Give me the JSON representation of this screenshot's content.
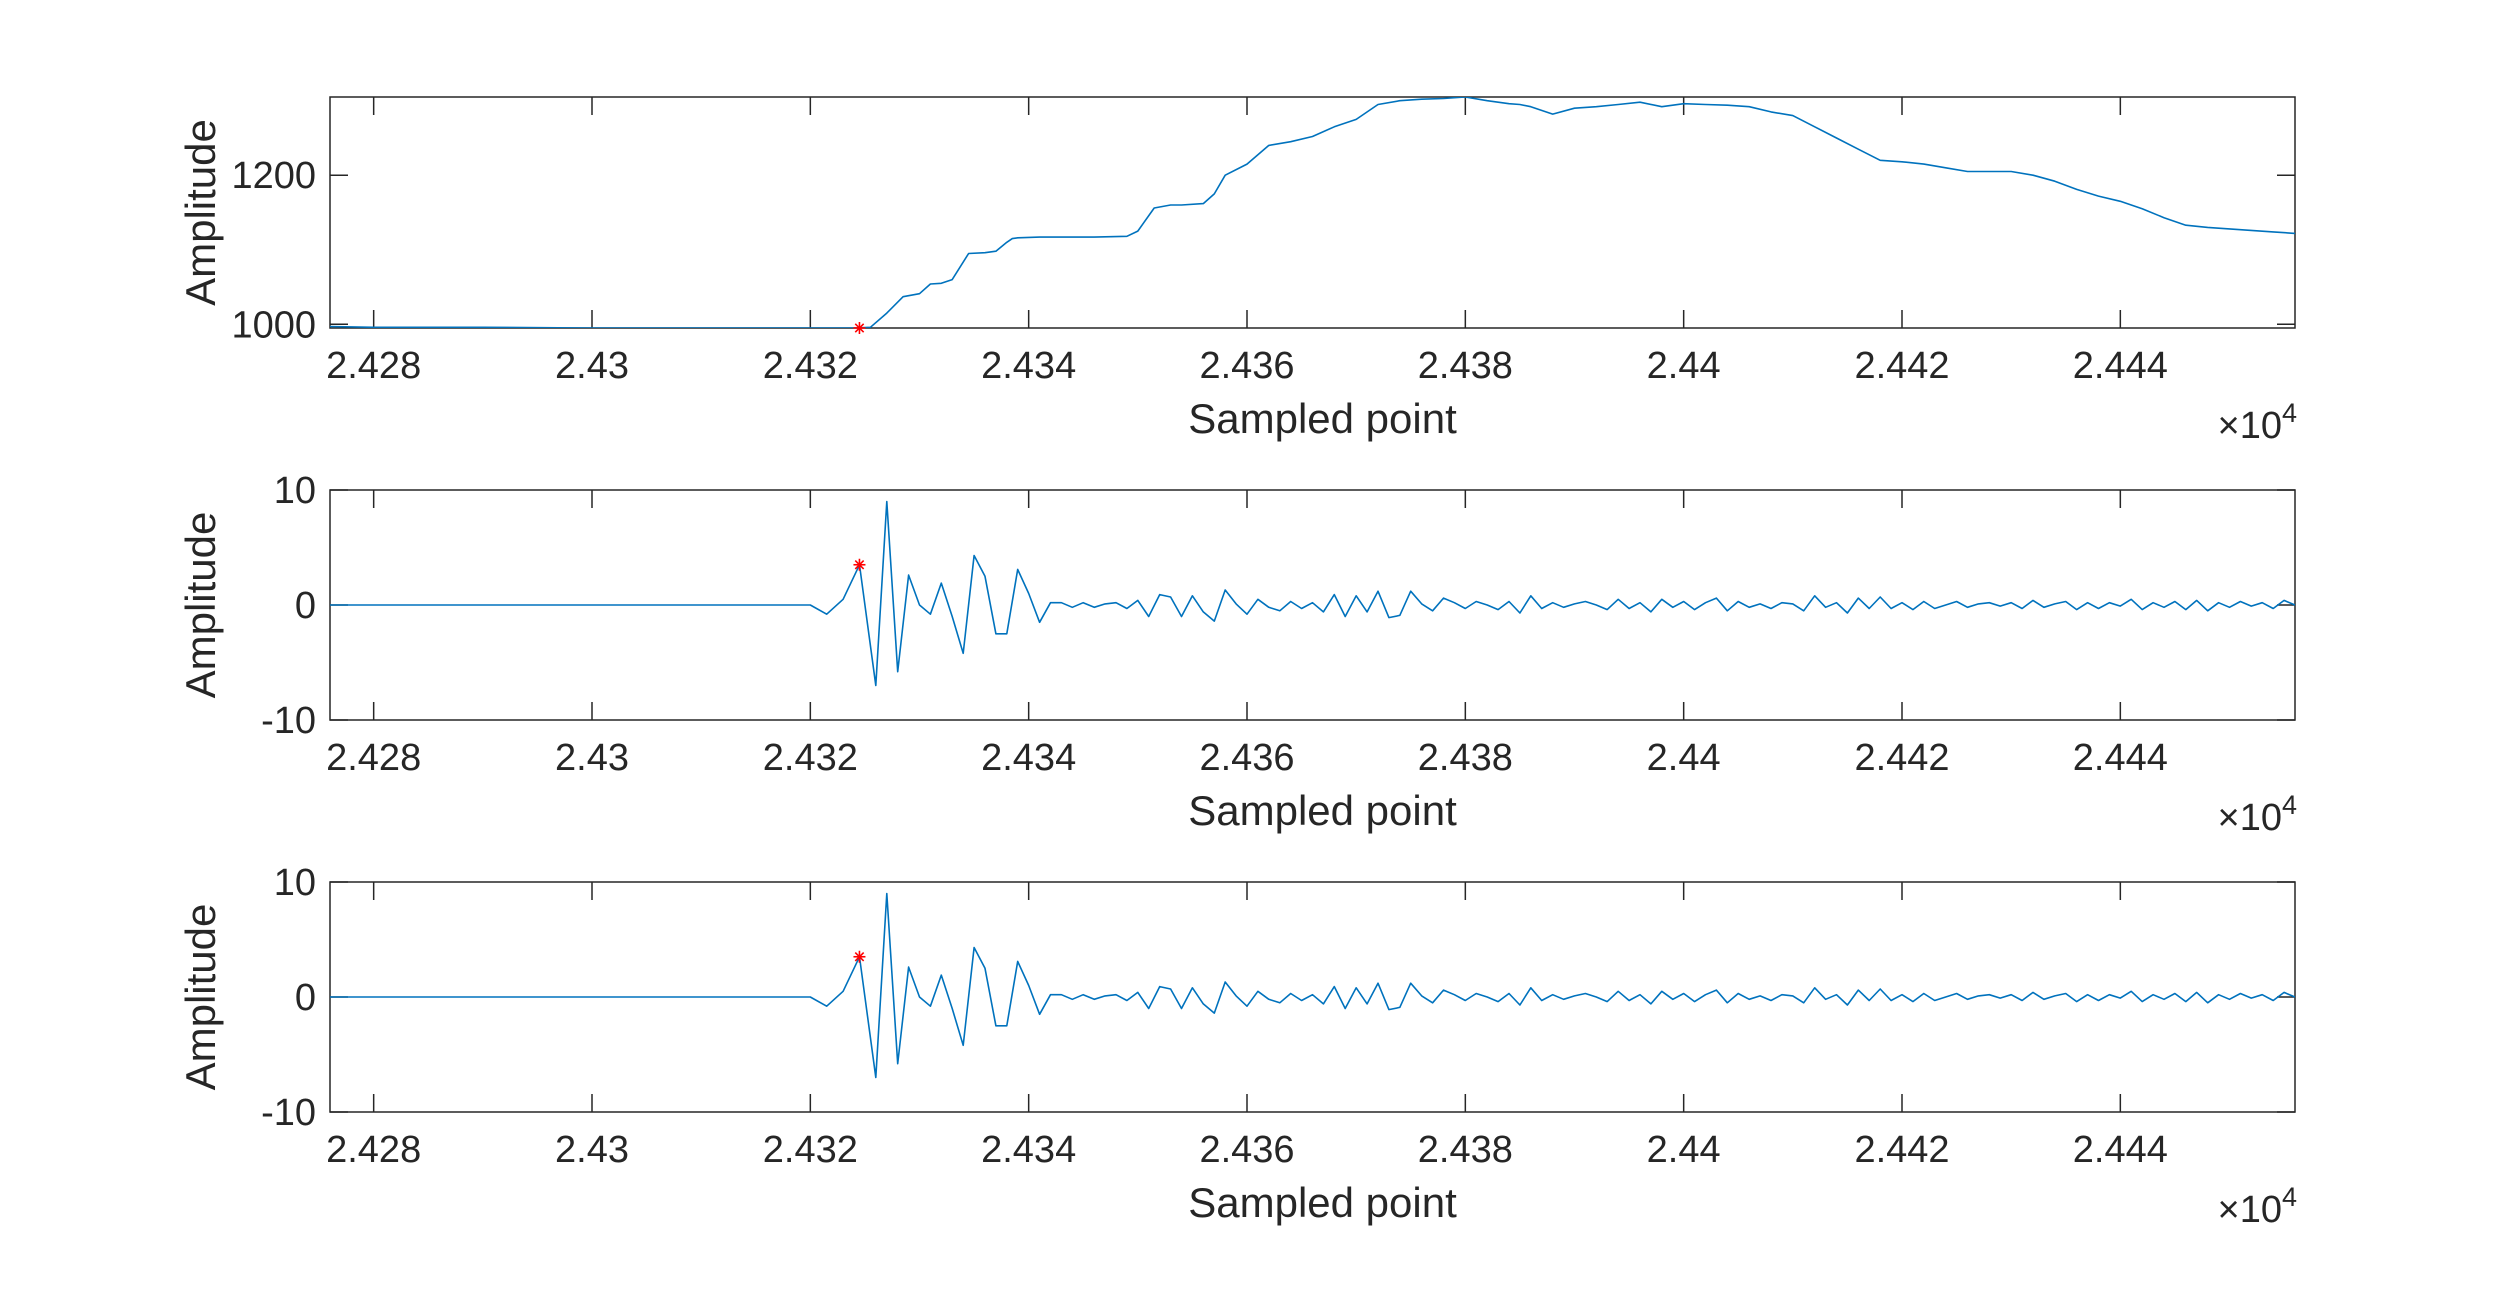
{
  "figure": {
    "colors": {
      "line": "#0072bd",
      "marker": "#ff0000",
      "axes": "#262626",
      "background": "#ffffff"
    }
  },
  "chart_data": [
    {
      "type": "line",
      "title": "",
      "xlabel": "Sampled point",
      "ylabel": "Amplitude",
      "x_exponent": {
        "base": "10",
        "power": "4"
      },
      "xlim": [
        2.4276,
        2.4456
      ],
      "ylim": [
        995,
        1305
      ],
      "xticks": [
        2.428,
        2.43,
        2.432,
        2.434,
        2.436,
        2.438,
        2.44,
        2.442,
        2.444
      ],
      "xtick_labels": [
        "2.428",
        "2.43",
        "2.432",
        "2.434",
        "2.436",
        "2.438",
        "2.44",
        "2.442",
        "2.444"
      ],
      "yticks": [
        1000,
        1200
      ],
      "ytick_labels": [
        "1000",
        "1200"
      ],
      "grid": false,
      "series": [
        {
          "x": [
            2.4276,
            2.428,
            2.429,
            2.43,
            2.431,
            2.432,
            2.4322,
            2.4324,
            2.43255,
            2.4327,
            2.43285,
            2.433,
            2.4331,
            2.4332,
            2.4333,
            2.43345,
            2.4336,
            2.4337,
            2.4338,
            2.43385,
            2.4339,
            2.4341,
            2.4343,
            2.4346,
            2.4349,
            2.435,
            2.43515,
            2.4353,
            2.4354,
            2.4356,
            2.4357,
            2.4358,
            2.436,
            2.4362,
            2.4364,
            2.4366,
            2.4368,
            2.437,
            2.4372,
            2.4374,
            2.4376,
            2.4378,
            2.438,
            2.4382,
            2.4384,
            2.4385,
            2.4386,
            2.4388,
            2.439,
            2.4392,
            2.4394,
            2.4396,
            2.4398,
            2.44,
            2.4402,
            2.4404,
            2.4406,
            2.4408,
            2.441,
            2.4412,
            2.4414,
            2.4416,
            2.4418,
            2.442,
            2.4422,
            2.4424,
            2.4426,
            2.4428,
            2.443,
            2.4432,
            2.4434,
            2.4436,
            2.4438,
            2.444,
            2.4442,
            2.4444,
            2.4446,
            2.4448,
            2.445,
            2.4452,
            2.4454,
            2.4456
          ],
          "y": [
            997,
            996,
            996,
            995,
            995,
            995,
            995,
            995,
            996,
            1015,
            1037,
            1041,
            1054,
            1055,
            1060,
            1095,
            1096,
            1098,
            1110,
            1115,
            1116,
            1117,
            1117,
            1117,
            1118,
            1125,
            1156,
            1160,
            1160,
            1162,
            1175,
            1200,
            1215,
            1240,
            1245,
            1252,
            1265,
            1275,
            1295,
            1300,
            1302,
            1303,
            1305,
            1300,
            1296,
            1295,
            1292,
            1282,
            1290,
            1292,
            1295,
            1298,
            1292,
            1296,
            1295,
            1294,
            1292,
            1285,
            1280,
            1265,
            1250,
            1235,
            1220,
            1218,
            1215,
            1210,
            1205,
            1205,
            1205,
            1200,
            1192,
            1181,
            1172,
            1165,
            1155,
            1143,
            1133,
            1130,
            1128,
            1126,
            1124,
            1122
          ]
        }
      ],
      "markers": [
        {
          "x": 2.43245,
          "y": 995,
          "symbol": "*"
        }
      ]
    },
    {
      "type": "line",
      "title": "",
      "xlabel": "Sampled point",
      "ylabel": "Amplitude",
      "x_exponent": {
        "base": "10",
        "power": "4"
      },
      "xlim": [
        2.4276,
        2.4456
      ],
      "ylim": [
        -10,
        10
      ],
      "xticks": [
        2.428,
        2.43,
        2.432,
        2.434,
        2.436,
        2.438,
        2.44,
        2.442,
        2.444
      ],
      "xtick_labels": [
        "2.428",
        "2.43",
        "2.432",
        "2.434",
        "2.436",
        "2.438",
        "2.44",
        "2.442",
        "2.444"
      ],
      "yticks": [
        -10,
        0,
        10
      ],
      "ytick_labels": [
        "-10",
        "0",
        "10"
      ],
      "grid": false,
      "series": [
        {
          "x": [
            2.4276,
            2.429,
            2.431,
            2.432,
            2.43215,
            2.4323,
            2.43245,
            2.4326,
            2.4327,
            2.4328,
            2.4329,
            2.433,
            2.4331,
            2.4332,
            2.4333,
            2.4334,
            2.4335,
            2.4336,
            2.4337,
            2.4338,
            2.4339,
            2.434,
            2.4341,
            2.4342,
            2.4343,
            2.4344,
            2.4345,
            2.4346,
            2.4347,
            2.4348,
            2.4349,
            2.435,
            2.4351,
            2.4352,
            2.4353,
            2.4354,
            2.4355,
            2.4356,
            2.4357,
            2.4358,
            2.4359,
            2.436,
            2.4361,
            2.4362,
            2.4363,
            2.4364,
            2.4365,
            2.4366,
            2.4367,
            2.4368,
            2.4369,
            2.437,
            2.4371,
            2.4372,
            2.4373,
            2.4374,
            2.4375,
            2.4376,
            2.4377,
            2.4378,
            2.4379,
            2.438,
            2.4381,
            2.4382,
            2.4383,
            2.4384,
            2.4385,
            2.4386,
            2.4387,
            2.4388,
            2.4389,
            2.439,
            2.4391,
            2.4392,
            2.4393,
            2.4394,
            2.4395,
            2.4396,
            2.4397,
            2.4398,
            2.4399,
            2.44,
            2.4401,
            2.4402,
            2.4403,
            2.4404,
            2.4405,
            2.4406,
            2.4407,
            2.4408,
            2.4409,
            2.441,
            2.4411,
            2.4412,
            2.4413,
            2.4414,
            2.4415,
            2.4416,
            2.4417,
            2.4418,
            2.4419,
            2.442,
            2.4421,
            2.4422,
            2.4423,
            2.4424,
            2.4425,
            2.4426,
            2.4427,
            2.4428,
            2.4429,
            2.443,
            2.4431,
            2.4432,
            2.4433,
            2.4434,
            2.4435,
            2.4436,
            2.4437,
            2.4438,
            2.4439,
            2.444,
            2.4441,
            2.4442,
            2.4443,
            2.4444,
            2.4445,
            2.4446,
            2.4447,
            2.4448,
            2.4449,
            2.445,
            2.4451,
            2.4452,
            2.4453,
            2.4454,
            2.4455,
            2.4456
          ],
          "y": [
            0,
            0,
            0,
            0,
            -0.8,
            0.5,
            3.5,
            -7,
            9,
            -5.8,
            2.6,
            0,
            -0.8,
            1.9,
            -1,
            -4.2,
            4.3,
            2.5,
            -2.5,
            -2.5,
            3.1,
            1,
            -1.5,
            0.2,
            0.2,
            -0.2,
            0.2,
            -0.2,
            0.1,
            0.2,
            -0.3,
            0.4,
            -1,
            0.9,
            0.7,
            -1,
            0.8,
            -0.6,
            -1.4,
            1.3,
            0.1,
            -0.8,
            0.5,
            -0.2,
            -0.5,
            0.3,
            -0.3,
            0.2,
            -0.6,
            0.9,
            -1,
            0.8,
            -0.6,
            1.2,
            -1.1,
            -0.9,
            1.2,
            0.1,
            -0.5,
            0.6,
            0.2,
            -0.3,
            0.3,
            0,
            -0.4,
            0.3,
            -0.7,
            0.8,
            -0.3,
            0.2,
            -0.2,
            0.1,
            0.3,
            0,
            -0.4,
            0.5,
            -0.3,
            0.2,
            -0.6,
            0.5,
            -0.2,
            0.3,
            -0.4,
            0.2,
            0.6,
            -0.5,
            0.3,
            -0.2,
            0.1,
            -0.3,
            0.2,
            0.1,
            -0.5,
            0.8,
            -0.2,
            0.2,
            -0.7,
            0.6,
            -0.3,
            0.7,
            -0.3,
            0.2,
            -0.4,
            0.3,
            -0.3,
            0,
            0.3,
            -0.2,
            0.1,
            0.2,
            -0.1,
            0.2,
            -0.3,
            0.4,
            -0.2,
            0.1,
            0.3,
            -0.4,
            0.2,
            -0.3,
            0.2,
            -0.1,
            0.5,
            -0.4,
            0.2,
            -0.2,
            0.3,
            -0.4,
            0.4,
            -0.5,
            0.2,
            -0.2,
            0.3,
            -0.1,
            0.2,
            -0.3,
            0.4,
            0
          ]
        }
      ],
      "markers": [
        {
          "x": 2.43245,
          "y": 3.5,
          "symbol": "*"
        }
      ]
    },
    {
      "type": "line",
      "title": "",
      "xlabel": "Sampled point",
      "ylabel": "Amplitude",
      "x_exponent": {
        "base": "10",
        "power": "4"
      },
      "xlim": [
        2.4276,
        2.4456
      ],
      "ylim": [
        -10,
        10
      ],
      "xticks": [
        2.428,
        2.43,
        2.432,
        2.434,
        2.436,
        2.438,
        2.44,
        2.442,
        2.444
      ],
      "xtick_labels": [
        "2.428",
        "2.43",
        "2.432",
        "2.434",
        "2.436",
        "2.438",
        "2.44",
        "2.442",
        "2.444"
      ],
      "yticks": [
        -10,
        0,
        10
      ],
      "ytick_labels": [
        "-10",
        "0",
        "10"
      ],
      "grid": false,
      "series": [
        {
          "x": [
            2.4276,
            2.429,
            2.431,
            2.432,
            2.43215,
            2.4323,
            2.43245,
            2.4326,
            2.4327,
            2.4328,
            2.4329,
            2.433,
            2.4331,
            2.4332,
            2.4333,
            2.4334,
            2.4335,
            2.4336,
            2.4337,
            2.4338,
            2.4339,
            2.434,
            2.4341,
            2.4342,
            2.4343,
            2.4344,
            2.4345,
            2.4346,
            2.4347,
            2.4348,
            2.4349,
            2.435,
            2.4351,
            2.4352,
            2.4353,
            2.4354,
            2.4355,
            2.4356,
            2.4357,
            2.4358,
            2.4359,
            2.436,
            2.4361,
            2.4362,
            2.4363,
            2.4364,
            2.4365,
            2.4366,
            2.4367,
            2.4368,
            2.4369,
            2.437,
            2.4371,
            2.4372,
            2.4373,
            2.4374,
            2.4375,
            2.4376,
            2.4377,
            2.4378,
            2.4379,
            2.438,
            2.4381,
            2.4382,
            2.4383,
            2.4384,
            2.4385,
            2.4386,
            2.4387,
            2.4388,
            2.4389,
            2.439,
            2.4391,
            2.4392,
            2.4393,
            2.4394,
            2.4395,
            2.4396,
            2.4397,
            2.4398,
            2.4399,
            2.44,
            2.4401,
            2.4402,
            2.4403,
            2.4404,
            2.4405,
            2.4406,
            2.4407,
            2.4408,
            2.4409,
            2.441,
            2.4411,
            2.4412,
            2.4413,
            2.4414,
            2.4415,
            2.4416,
            2.4417,
            2.4418,
            2.4419,
            2.442,
            2.4421,
            2.4422,
            2.4423,
            2.4424,
            2.4425,
            2.4426,
            2.4427,
            2.4428,
            2.4429,
            2.443,
            2.4431,
            2.4432,
            2.4433,
            2.4434,
            2.4435,
            2.4436,
            2.4437,
            2.4438,
            2.4439,
            2.444,
            2.4441,
            2.4442,
            2.4443,
            2.4444,
            2.4445,
            2.4446,
            2.4447,
            2.4448,
            2.4449,
            2.445,
            2.4451,
            2.4452,
            2.4453,
            2.4454,
            2.4455,
            2.4456
          ],
          "y": [
            0,
            0,
            0,
            0,
            -0.8,
            0.5,
            3.5,
            -7,
            9,
            -5.8,
            2.6,
            0,
            -0.8,
            1.9,
            -1,
            -4.2,
            4.3,
            2.5,
            -2.5,
            -2.5,
            3.1,
            1,
            -1.5,
            0.2,
            0.2,
            -0.2,
            0.2,
            -0.2,
            0.1,
            0.2,
            -0.3,
            0.4,
            -1,
            0.9,
            0.7,
            -1,
            0.8,
            -0.6,
            -1.4,
            1.3,
            0.1,
            -0.8,
            0.5,
            -0.2,
            -0.5,
            0.3,
            -0.3,
            0.2,
            -0.6,
            0.9,
            -1,
            0.8,
            -0.6,
            1.2,
            -1.1,
            -0.9,
            1.2,
            0.1,
            -0.5,
            0.6,
            0.2,
            -0.3,
            0.3,
            0,
            -0.4,
            0.3,
            -0.7,
            0.8,
            -0.3,
            0.2,
            -0.2,
            0.1,
            0.3,
            0,
            -0.4,
            0.5,
            -0.3,
            0.2,
            -0.6,
            0.5,
            -0.2,
            0.3,
            -0.4,
            0.2,
            0.6,
            -0.5,
            0.3,
            -0.2,
            0.1,
            -0.3,
            0.2,
            0.1,
            -0.5,
            0.8,
            -0.2,
            0.2,
            -0.7,
            0.6,
            -0.3,
            0.7,
            -0.3,
            0.2,
            -0.4,
            0.3,
            -0.3,
            0,
            0.3,
            -0.2,
            0.1,
            0.2,
            -0.1,
            0.2,
            -0.3,
            0.4,
            -0.2,
            0.1,
            0.3,
            -0.4,
            0.2,
            -0.3,
            0.2,
            -0.1,
            0.5,
            -0.4,
            0.2,
            -0.2,
            0.3,
            -0.4,
            0.4,
            -0.5,
            0.2,
            -0.2,
            0.3,
            -0.1,
            0.2,
            -0.3,
            0.4,
            0
          ]
        }
      ],
      "markers": [
        {
          "x": 2.43245,
          "y": 3.5,
          "symbol": "*"
        }
      ]
    }
  ]
}
